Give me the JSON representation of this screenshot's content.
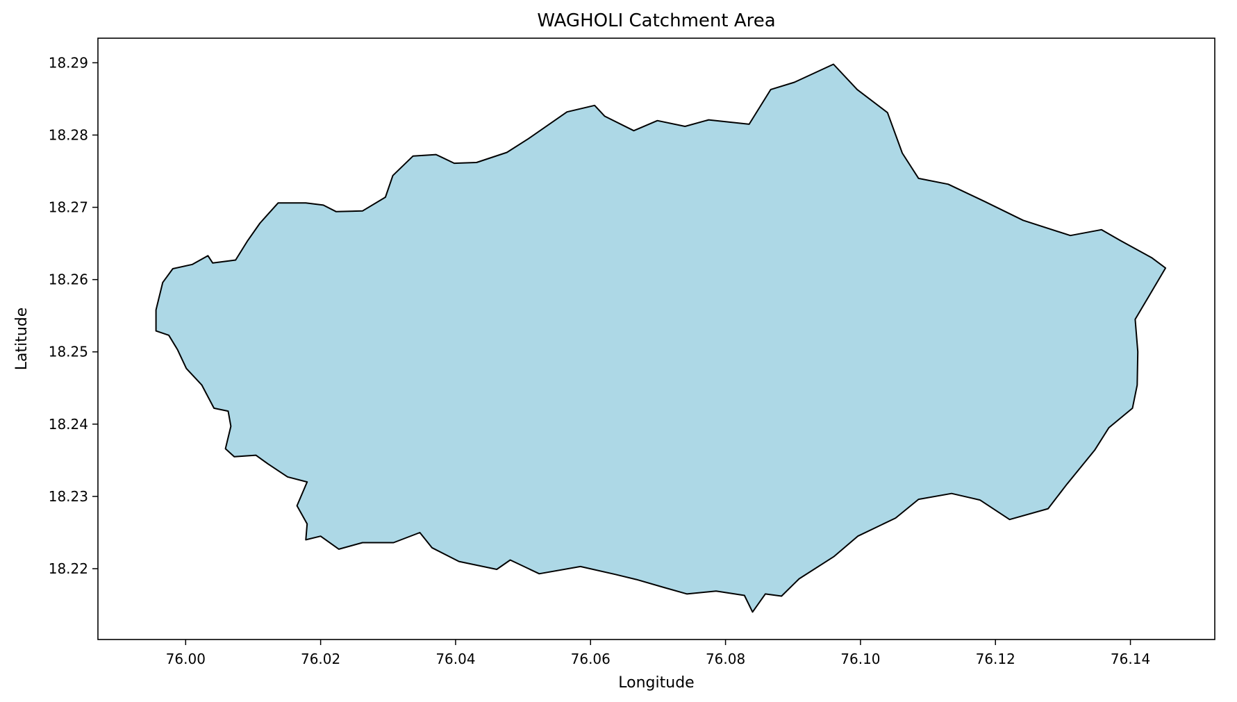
{
  "chart_data": {
    "type": "map",
    "title": "WAGHOLI Catchment Area",
    "xlabel": "Longitude",
    "ylabel": "Latitude",
    "xlim": [
      75.987,
      76.1525
    ],
    "ylim": [
      18.2102,
      18.2934
    ],
    "x_ticks": [
      "76.00",
      "76.02",
      "76.04",
      "76.06",
      "76.08",
      "76.10",
      "76.12",
      "76.14"
    ],
    "x_tick_values": [
      76.0,
      76.02,
      76.04,
      76.06,
      76.08,
      76.1,
      76.12,
      76.14
    ],
    "y_ticks": [
      "18.22",
      "18.23",
      "18.24",
      "18.25",
      "18.26",
      "18.27",
      "18.28",
      "18.29"
    ],
    "y_tick_values": [
      18.22,
      18.23,
      18.24,
      18.25,
      18.26,
      18.27,
      18.28,
      18.29
    ],
    "grid": false,
    "fill_color": "#add8e6",
    "edge_color": "#000000",
    "boundary": [
      [
        75.9956,
        18.2529
      ],
      [
        75.9956,
        18.2558
      ],
      [
        75.9966,
        18.2596
      ],
      [
        75.9981,
        18.2615
      ],
      [
        76.001,
        18.2621
      ],
      [
        76.0033,
        18.2633
      ],
      [
        76.004,
        18.2623
      ],
      [
        76.0074,
        18.2627
      ],
      [
        76.0092,
        18.2654
      ],
      [
        76.011,
        18.2678
      ],
      [
        76.0137,
        18.2706
      ],
      [
        76.0178,
        18.2706
      ],
      [
        76.0204,
        18.2703
      ],
      [
        76.0223,
        18.2694
      ],
      [
        76.0262,
        18.2695
      ],
      [
        76.0296,
        18.2714
      ],
      [
        76.0307,
        18.2744
      ],
      [
        76.0337,
        18.2771
      ],
      [
        76.0371,
        18.2773
      ],
      [
        76.0398,
        18.2761
      ],
      [
        76.0431,
        18.2762
      ],
      [
        76.0476,
        18.2776
      ],
      [
        76.0508,
        18.2795
      ],
      [
        76.0565,
        18.2832
      ],
      [
        76.0606,
        18.2841
      ],
      [
        76.0621,
        18.2826
      ],
      [
        76.0664,
        18.2806
      ],
      [
        76.0699,
        18.282
      ],
      [
        76.074,
        18.2812
      ],
      [
        76.0775,
        18.2821
      ],
      [
        76.0835,
        18.2815
      ],
      [
        76.0867,
        18.2863
      ],
      [
        76.0902,
        18.2873
      ],
      [
        76.096,
        18.2898
      ],
      [
        76.0995,
        18.2863
      ],
      [
        76.104,
        18.2831
      ],
      [
        76.1062,
        18.2775
      ],
      [
        76.1086,
        18.274
      ],
      [
        76.113,
        18.2732
      ],
      [
        76.1184,
        18.2708
      ],
      [
        76.1241,
        18.2682
      ],
      [
        76.1311,
        18.2661
      ],
      [
        76.1357,
        18.2669
      ],
      [
        76.1385,
        18.2654
      ],
      [
        76.1432,
        18.263
      ],
      [
        76.1452,
        18.2616
      ],
      [
        76.1428,
        18.2578
      ],
      [
        76.1407,
        18.2545
      ],
      [
        76.1411,
        18.25
      ],
      [
        76.141,
        18.2454
      ],
      [
        76.1403,
        18.2422
      ],
      [
        76.1368,
        18.2395
      ],
      [
        76.1347,
        18.2364
      ],
      [
        76.1306,
        18.2317
      ],
      [
        76.1278,
        18.2283
      ],
      [
        76.1221,
        18.2268
      ],
      [
        76.1177,
        18.2295
      ],
      [
        76.1135,
        18.2304
      ],
      [
        76.1086,
        18.2296
      ],
      [
        76.1052,
        18.227
      ],
      [
        76.0996,
        18.2245
      ],
      [
        76.0961,
        18.2217
      ],
      [
        76.0909,
        18.2186
      ],
      [
        76.0883,
        18.2162
      ],
      [
        76.0859,
        18.2165
      ],
      [
        76.084,
        18.214
      ],
      [
        76.0828,
        18.2163
      ],
      [
        76.0786,
        18.2169
      ],
      [
        76.0743,
        18.2165
      ],
      [
        76.0709,
        18.2174
      ],
      [
        76.0668,
        18.2185
      ],
      [
        76.0637,
        18.2192
      ],
      [
        76.0585,
        18.2203
      ],
      [
        76.0524,
        18.2193
      ],
      [
        76.0481,
        18.2212
      ],
      [
        76.0461,
        18.2199
      ],
      [
        76.0405,
        18.221
      ],
      [
        76.0365,
        18.2229
      ],
      [
        76.0347,
        18.225
      ],
      [
        76.0308,
        18.2236
      ],
      [
        76.0262,
        18.2236
      ],
      [
        76.0227,
        18.2227
      ],
      [
        76.02,
        18.2245
      ],
      [
        76.0178,
        18.224
      ],
      [
        76.018,
        18.2262
      ],
      [
        76.0165,
        18.2287
      ],
      [
        76.018,
        18.232
      ],
      [
        76.0151,
        18.2327
      ],
      [
        76.0122,
        18.2345
      ],
      [
        76.0104,
        18.2357
      ],
      [
        76.0072,
        18.2355
      ],
      [
        76.0059,
        18.2366
      ],
      [
        76.0067,
        18.2397
      ],
      [
        76.0063,
        18.2418
      ],
      [
        76.0042,
        18.2422
      ],
      [
        76.0024,
        18.2454
      ],
      [
        76.0001,
        18.2477
      ],
      [
        75.9988,
        18.2503
      ],
      [
        75.9975,
        18.2523
      ],
      [
        75.9956,
        18.2529
      ]
    ]
  }
}
